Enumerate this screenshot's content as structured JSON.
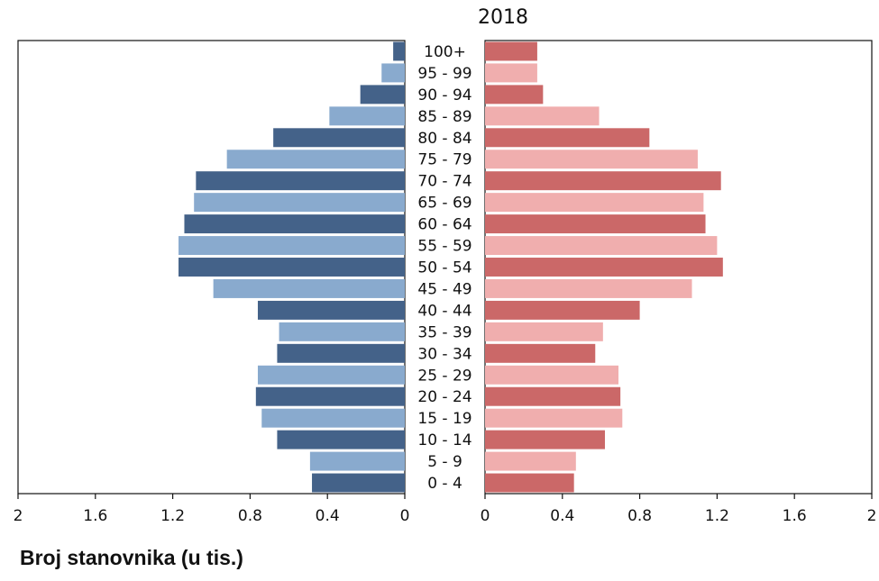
{
  "chart_data": {
    "type": "bar",
    "orientation": "horizontal",
    "subtype": "population-pyramid",
    "title": "2018",
    "xlabel": "Broj stanovnika (u tis.)",
    "xlim": [
      0,
      2
    ],
    "ticks": [
      "2",
      "1.6",
      "1.2",
      "0.8",
      "0.4",
      "0"
    ],
    "ticks_right": [
      "0",
      "0.4",
      "0.8",
      "1.2",
      "1.6",
      "2"
    ],
    "tick_values": [
      0,
      0.4,
      0.8,
      1.2,
      1.6,
      2
    ],
    "categories": [
      "100+",
      "95 - 99",
      "90 - 94",
      "85 - 89",
      "80 - 84",
      "75 - 79",
      "70 - 74",
      "65 - 69",
      "60 - 64",
      "55 - 59",
      "50 - 54",
      "45 - 49",
      "40 - 44",
      "35 - 39",
      "30 - 34",
      "25 - 29",
      "20 - 24",
      "15 - 19",
      "10 - 14",
      "5 - 9",
      "0 - 4"
    ],
    "series": [
      {
        "side": "left",
        "colors": [
          "#446289",
          "#89aace"
        ],
        "values": [
          0.06,
          0.12,
          0.23,
          0.39,
          0.68,
          0.92,
          1.08,
          1.09,
          1.14,
          1.17,
          1.17,
          0.99,
          0.76,
          0.65,
          0.66,
          0.76,
          0.77,
          0.74,
          0.66,
          0.49,
          0.48
        ]
      },
      {
        "side": "right",
        "colors": [
          "#cb6868",
          "#f0aeae"
        ],
        "values": [
          0.27,
          0.27,
          0.3,
          0.59,
          0.85,
          1.1,
          1.22,
          1.13,
          1.14,
          1.2,
          1.23,
          1.07,
          0.8,
          0.61,
          0.57,
          0.69,
          0.7,
          0.71,
          0.62,
          0.47,
          0.46
        ]
      }
    ],
    "grid": false,
    "legend": "none"
  }
}
